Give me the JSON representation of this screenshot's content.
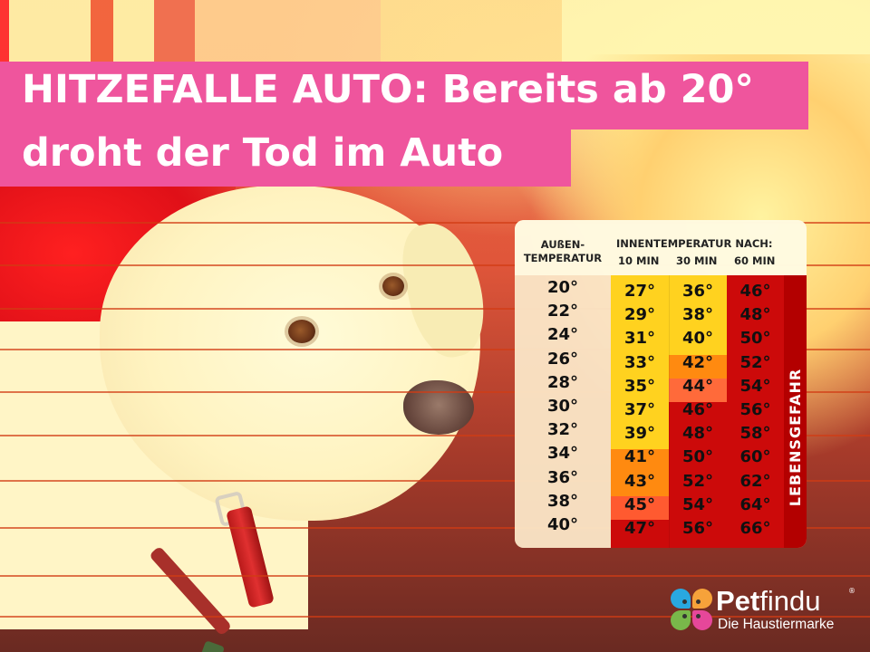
{
  "headline": {
    "line1": "HITZEFALLE AUTO: Bereits ab 20°",
    "line2": "droht der Tod im Auto",
    "background_color": "#ef559d"
  },
  "table": {
    "header_outside": [
      "AUßEN-",
      "TEMPERATUR"
    ],
    "header_inside": "INNENTEMPERATUR NACH:",
    "header_times": [
      "10 MIN",
      "30 MIN",
      "60 MIN"
    ],
    "danger_label": "LEBENSGEFAHR",
    "rows": [
      {
        "outside": "20°",
        "min10": "27°",
        "min30": "36°",
        "min60": "46°"
      },
      {
        "outside": "22°",
        "min10": "29°",
        "min30": "38°",
        "min60": "48°"
      },
      {
        "outside": "24°",
        "min10": "31°",
        "min30": "40°",
        "min60": "50°"
      },
      {
        "outside": "26°",
        "min10": "33°",
        "min30": "42°",
        "min60": "52°"
      },
      {
        "outside": "28°",
        "min10": "35°",
        "min30": "44°",
        "min60": "54°"
      },
      {
        "outside": "30°",
        "min10": "37°",
        "min30": "46°",
        "min60": "56°"
      },
      {
        "outside": "32°",
        "min10": "39°",
        "min30": "48°",
        "min60": "58°"
      },
      {
        "outside": "34°",
        "min10": "41°",
        "min30": "50°",
        "min60": "60°"
      },
      {
        "outside": "36°",
        "min10": "43°",
        "min30": "52°",
        "min60": "62°"
      },
      {
        "outside": "38°",
        "min10": "45°",
        "min30": "54°",
        "min60": "64°"
      },
      {
        "outside": "40°",
        "min10": "47°",
        "min30": "56°",
        "min60": "66°"
      }
    ],
    "colors": {
      "yellow": "#ffd21f",
      "orange": "#ff8a10",
      "orange_red": "#ff5a30",
      "red": "#cc0a0a",
      "dark_red": "#b30000"
    }
  },
  "chart_data": {
    "type": "table",
    "title": "Innentemperatur nach Außentemperatur",
    "columns": [
      "Außentemperatur",
      "10 min",
      "30 min",
      "60 min"
    ],
    "rows": [
      [
        20,
        27,
        36,
        46
      ],
      [
        22,
        29,
        38,
        48
      ],
      [
        24,
        31,
        40,
        50
      ],
      [
        26,
        33,
        42,
        52
      ],
      [
        28,
        35,
        44,
        54
      ],
      [
        30,
        37,
        46,
        56
      ],
      [
        32,
        39,
        48,
        58
      ],
      [
        34,
        41,
        50,
        60
      ],
      [
        36,
        43,
        52,
        62
      ],
      [
        38,
        45,
        54,
        64
      ],
      [
        40,
        47,
        56,
        66
      ]
    ],
    "annotation": "LEBENSGEFAHR",
    "unit": "°C"
  },
  "logo": {
    "brand_bold": "Pet",
    "brand_light": "findu",
    "registered": "®",
    "tagline": "Die Haustiermarke",
    "petal_colors": [
      "#29a8e0",
      "#f6a23a",
      "#79b84a",
      "#e6479a"
    ]
  }
}
